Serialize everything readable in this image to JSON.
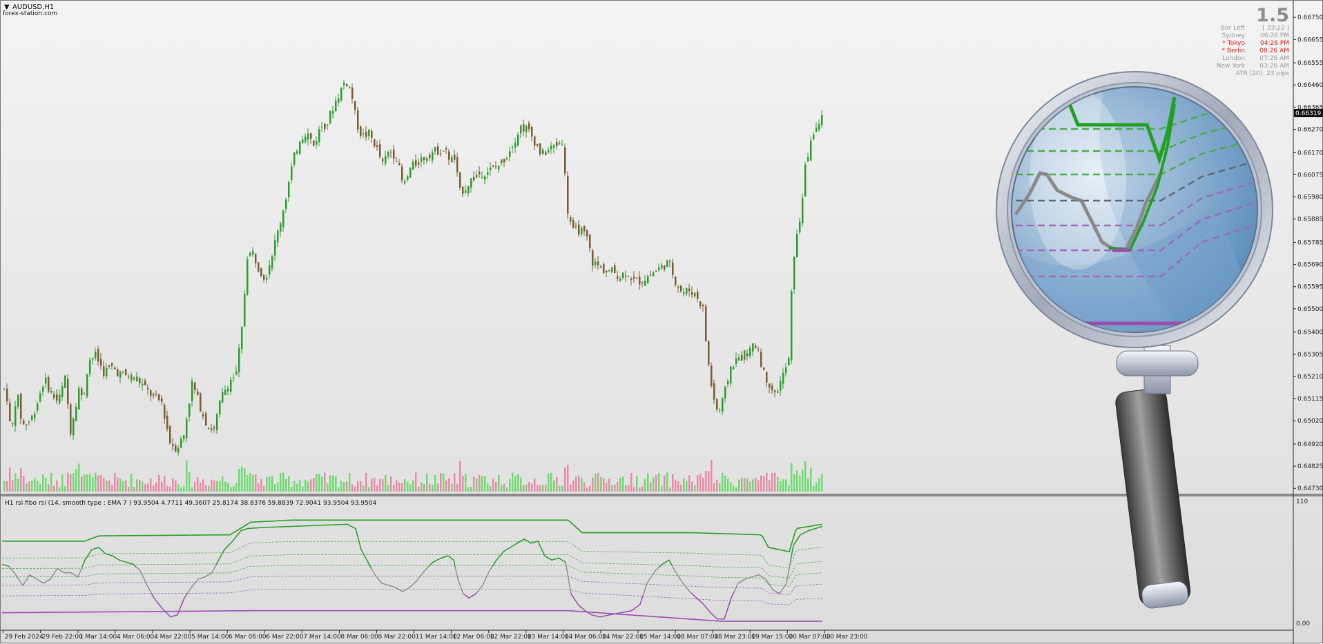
{
  "symbol": "AUDUSD,H1",
  "watermark": "forex-station.com",
  "big_value": "1.5",
  "info_panel": [
    {
      "name": "Bar Left",
      "value": "[ 33:22 ]",
      "highlight": false
    },
    {
      "name": "Sydney",
      "value": "06:26 PM",
      "highlight": false
    },
    {
      "name": "* Tokyo",
      "value": "04:26 PM",
      "highlight": true
    },
    {
      "name": "* Berlin",
      "value": "08:26 AM",
      "highlight": true
    },
    {
      "name": "London",
      "value": "07:26 AM",
      "highlight": false
    },
    {
      "name": "New York",
      "value": "03:26 AM",
      "highlight": false
    }
  ],
  "atr_text": "ATR (20): 23 pips",
  "current_price": "0.66319",
  "indicator_label": "H1 rsi fibo rsi (14, smooth type : EMA  7 ) 93.9504 4.7711 49.3607 25.8174 38.8376 59.8839 72.9041 93.9504 93.9504",
  "indicator_scale": {
    "top": "110",
    "bottom": "0.00"
  },
  "colors": {
    "bull": "#2a9d2a",
    "bear": "#7a5a2e",
    "vol_up": "#6ddb6d",
    "vol_down": "#e88aa8",
    "rsi_green": "#22a022",
    "rsi_purple": "#9a4ab0",
    "level_green": "#4caa4c",
    "level_purple": "#9b6ab8"
  },
  "chart_data": {
    "type": "candlestick",
    "symbol": "AUDUSD",
    "timeframe": "H1",
    "y_ticks": [
      "0.66750",
      "0.66655",
      "0.66555",
      "0.66460",
      "0.66365",
      "0.66270",
      "0.66170",
      "0.66075",
      "0.65980",
      "0.65885",
      "0.65785",
      "0.65690",
      "0.65595",
      "0.65500",
      "0.65400",
      "0.65305",
      "0.65210",
      "0.65115",
      "0.65020",
      "0.64920",
      "0.64825",
      "0.64730"
    ],
    "ylim": [
      0.6471,
      0.6678
    ],
    "x_ticks": [
      "29 Feb 2024",
      "29 Feb 22:00",
      "1 Mar 14:00",
      "4 Mar 06:00",
      "4 Mar 22:00",
      "5 Mar 14:00",
      "6 Mar 06:00",
      "6 Mar 22:00",
      "7 Mar 14:00",
      "8 Mar 06:00",
      "8 Mar 22:00",
      "11 Mar 14:00",
      "12 Mar 06:00",
      "12 Mar 22:00",
      "13 Mar 14:00",
      "14 Mar 06:00",
      "14 Mar 22:00",
      "15 Mar 14:00",
      "18 Mar 07:00",
      "18 Mar 23:00",
      "19 Mar 15:00",
      "20 Mar 07:00",
      "20 Mar 23:00"
    ],
    "price_path": [
      [
        0,
        0.6519
      ],
      [
        8,
        0.6512
      ],
      [
        14,
        0.6495
      ],
      [
        22,
        0.6515
      ],
      [
        30,
        0.65
      ],
      [
        42,
        0.6502
      ],
      [
        52,
        0.651
      ],
      [
        62,
        0.652
      ],
      [
        72,
        0.6514
      ],
      [
        82,
        0.651
      ],
      [
        92,
        0.652
      ],
      [
        100,
        0.6498
      ],
      [
        112,
        0.6516
      ],
      [
        118,
        0.651
      ],
      [
        126,
        0.6528
      ],
      [
        136,
        0.653
      ],
      [
        148,
        0.6523
      ],
      [
        160,
        0.6525
      ],
      [
        172,
        0.6522
      ],
      [
        184,
        0.6521
      ],
      [
        196,
        0.652
      ],
      [
        208,
        0.6516
      ],
      [
        220,
        0.6512
      ],
      [
        232,
        0.651
      ],
      [
        244,
        0.6493
      ],
      [
        254,
        0.649
      ],
      [
        264,
        0.6496
      ],
      [
        276,
        0.6518
      ],
      [
        288,
        0.6508
      ],
      [
        298,
        0.65
      ],
      [
        308,
        0.6498
      ],
      [
        318,
        0.6512
      ],
      [
        330,
        0.6519
      ],
      [
        340,
        0.6522
      ],
      [
        348,
        0.6541
      ],
      [
        356,
        0.6573
      ],
      [
        364,
        0.6574
      ],
      [
        372,
        0.6568
      ],
      [
        382,
        0.6563
      ],
      [
        392,
        0.6574
      ],
      [
        402,
        0.6585
      ],
      [
        412,
        0.6598
      ],
      [
        422,
        0.6613
      ],
      [
        432,
        0.6623
      ],
      [
        442,
        0.6626
      ],
      [
        452,
        0.662
      ],
      [
        462,
        0.6628
      ],
      [
        472,
        0.663
      ],
      [
        482,
        0.6638
      ],
      [
        490,
        0.6643
      ],
      [
        498,
        0.6648
      ],
      [
        506,
        0.6644
      ],
      [
        514,
        0.663
      ],
      [
        522,
        0.6624
      ],
      [
        532,
        0.6625
      ],
      [
        542,
        0.662
      ],
      [
        552,
        0.6612
      ],
      [
        562,
        0.6618
      ],
      [
        572,
        0.6615
      ],
      [
        582,
        0.6602
      ],
      [
        592,
        0.661
      ],
      [
        602,
        0.6613
      ],
      [
        612,
        0.6615
      ],
      [
        622,
        0.6617
      ],
      [
        632,
        0.6618
      ],
      [
        642,
        0.6618
      ],
      [
        650,
        0.6614
      ],
      [
        656,
        0.6614
      ],
      [
        664,
        0.66
      ],
      [
        672,
        0.6602
      ],
      [
        682,
        0.6606
      ],
      [
        692,
        0.6608
      ],
      [
        702,
        0.6609
      ],
      [
        712,
        0.661
      ],
      [
        722,
        0.6612
      ],
      [
        732,
        0.6616
      ],
      [
        742,
        0.6622
      ],
      [
        752,
        0.6628
      ],
      [
        762,
        0.6627
      ],
      [
        772,
        0.6622
      ],
      [
        782,
        0.6616
      ],
      [
        792,
        0.6618
      ],
      [
        802,
        0.662
      ],
      [
        812,
        0.6622
      ],
      [
        820,
        0.6592
      ],
      [
        828,
        0.6583
      ],
      [
        838,
        0.6584
      ],
      [
        848,
        0.658
      ],
      [
        856,
        0.657
      ],
      [
        866,
        0.6568
      ],
      [
        876,
        0.6566
      ],
      [
        886,
        0.6566
      ],
      [
        896,
        0.6564
      ],
      [
        906,
        0.6566
      ],
      [
        916,
        0.6562
      ],
      [
        926,
        0.6562
      ],
      [
        936,
        0.6564
      ],
      [
        946,
        0.6566
      ],
      [
        956,
        0.6568
      ],
      [
        966,
        0.657
      ],
      [
        976,
        0.6562
      ],
      [
        986,
        0.6557
      ],
      [
        996,
        0.6558
      ],
      [
        1006,
        0.6556
      ],
      [
        1016,
        0.655
      ],
      [
        1022,
        0.653
      ],
      [
        1030,
        0.6513
      ],
      [
        1038,
        0.6505
      ],
      [
        1046,
        0.6512
      ],
      [
        1056,
        0.6525
      ],
      [
        1064,
        0.6528
      ],
      [
        1074,
        0.653
      ],
      [
        1084,
        0.6532
      ],
      [
        1094,
        0.6535
      ],
      [
        1104,
        0.6522
      ],
      [
        1112,
        0.6518
      ],
      [
        1120,
        0.6513
      ],
      [
        1130,
        0.652
      ],
      [
        1140,
        0.6528
      ],
      [
        1146,
        0.657
      ],
      [
        1156,
        0.6588
      ],
      [
        1164,
        0.661
      ],
      [
        1174,
        0.6625
      ],
      [
        1182,
        0.6628
      ],
      [
        1188,
        0.6632
      ]
    ],
    "indicator": {
      "name": "rsi fibo rsi",
      "params": "14, smooth type : EMA 7",
      "ylim": [
        0,
        110
      ],
      "values": [
        93.9504,
        4.7711,
        49.3607,
        25.8174,
        38.8376,
        59.8839,
        72.9041,
        93.9504,
        93.9504
      ],
      "rsi_path": [
        [
          0,
          58
        ],
        [
          10,
          56
        ],
        [
          20,
          48
        ],
        [
          30,
          38
        ],
        [
          40,
          48
        ],
        [
          50,
          44
        ],
        [
          60,
          40
        ],
        [
          70,
          44
        ],
        [
          80,
          54
        ],
        [
          90,
          50
        ],
        [
          100,
          50
        ],
        [
          110,
          46
        ],
        [
          120,
          62
        ],
        [
          130,
          72
        ],
        [
          140,
          74
        ],
        [
          150,
          68
        ],
        [
          160,
          66
        ],
        [
          170,
          62
        ],
        [
          180,
          60
        ],
        [
          190,
          58
        ],
        [
          200,
          52
        ],
        [
          210,
          38
        ],
        [
          220,
          26
        ],
        [
          232,
          16
        ],
        [
          244,
          8
        ],
        [
          254,
          10
        ],
        [
          264,
          26
        ],
        [
          274,
          36
        ],
        [
          284,
          44
        ],
        [
          294,
          46
        ],
        [
          304,
          50
        ],
        [
          312,
          60
        ],
        [
          322,
          72
        ],
        [
          334,
          80
        ],
        [
          346,
          90
        ],
        [
          356,
          92
        ],
        [
          380,
          93
        ],
        [
          420,
          94
        ],
        [
          460,
          95
        ],
        [
          500,
          96
        ],
        [
          512,
          92
        ],
        [
          520,
          72
        ],
        [
          530,
          60
        ],
        [
          540,
          48
        ],
        [
          550,
          40
        ],
        [
          560,
          38
        ],
        [
          570,
          36
        ],
        [
          580,
          32
        ],
        [
          590,
          36
        ],
        [
          600,
          42
        ],
        [
          612,
          52
        ],
        [
          624,
          60
        ],
        [
          636,
          64
        ],
        [
          646,
          66
        ],
        [
          654,
          62
        ],
        [
          660,
          44
        ],
        [
          668,
          30
        ],
        [
          676,
          26
        ],
        [
          686,
          30
        ],
        [
          696,
          38
        ],
        [
          706,
          52
        ],
        [
          716,
          62
        ],
        [
          726,
          70
        ],
        [
          736,
          74
        ],
        [
          746,
          78
        ],
        [
          756,
          82
        ],
        [
          766,
          78
        ],
        [
          776,
          80
        ],
        [
          786,
          66
        ],
        [
          796,
          62
        ],
        [
          806,
          64
        ],
        [
          816,
          60
        ],
        [
          824,
          30
        ],
        [
          834,
          20
        ],
        [
          844,
          14
        ],
        [
          854,
          10
        ],
        [
          866,
          8
        ],
        [
          880,
          10
        ],
        [
          896,
          12
        ],
        [
          912,
          14
        ],
        [
          924,
          20
        ],
        [
          934,
          40
        ],
        [
          946,
          52
        ],
        [
          956,
          58
        ],
        [
          966,
          62
        ],
        [
          976,
          50
        ],
        [
          986,
          40
        ],
        [
          996,
          32
        ],
        [
          1006,
          26
        ],
        [
          1016,
          20
        ],
        [
          1026,
          12
        ],
        [
          1036,
          6
        ],
        [
          1046,
          6
        ],
        [
          1056,
          26
        ],
        [
          1066,
          40
        ],
        [
          1076,
          44
        ],
        [
          1086,
          46
        ],
        [
          1096,
          48
        ],
        [
          1106,
          44
        ],
        [
          1116,
          34
        ],
        [
          1126,
          30
        ],
        [
          1136,
          40
        ],
        [
          1146,
          76
        ],
        [
          1156,
          86
        ],
        [
          1168,
          90
        ],
        [
          1188,
          94
        ]
      ]
    }
  }
}
